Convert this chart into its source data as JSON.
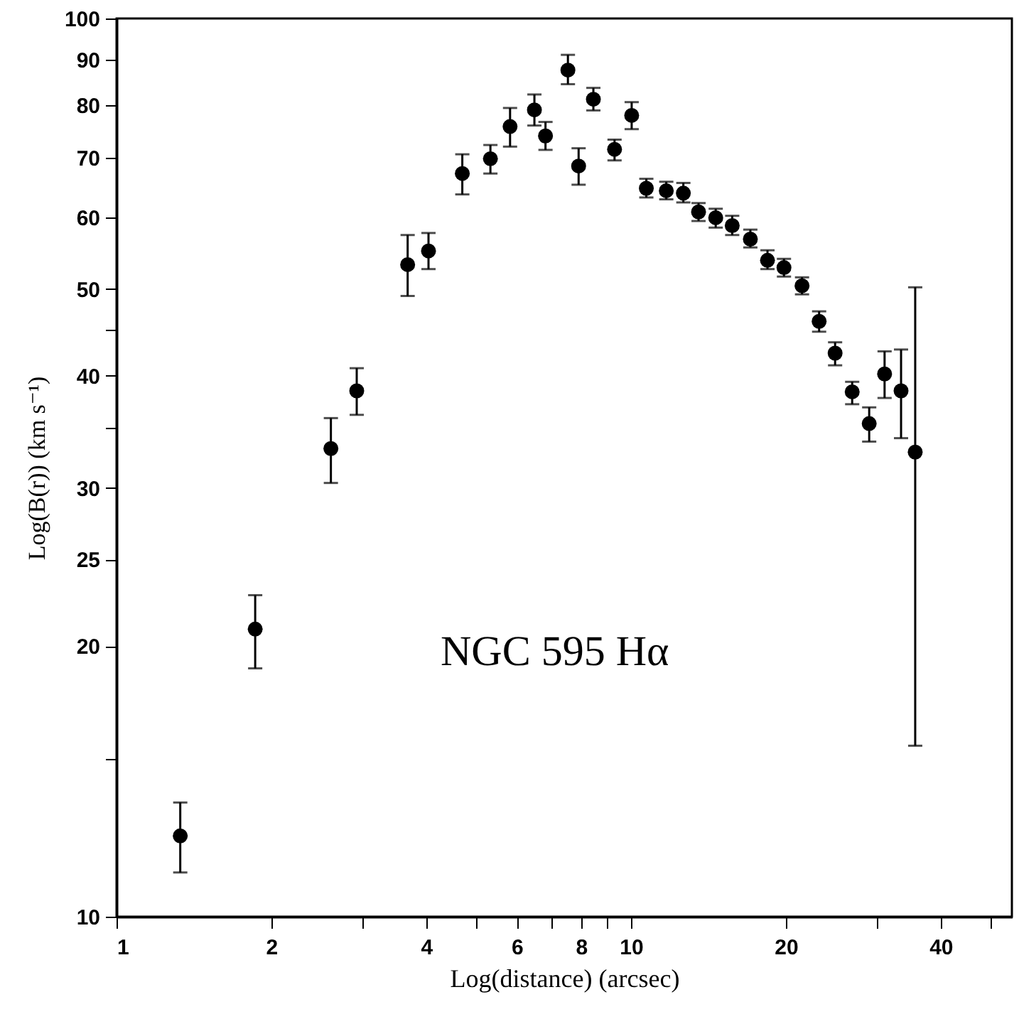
{
  "chart_data": {
    "type": "scatter",
    "xlabel": "Log(distance) (arcsec)",
    "ylabel": "Log(B(r)) (km s⁻¹)",
    "annotations": [
      "NGC 595 Hα"
    ],
    "log": "xy",
    "marker": "circle",
    "xlim": [
      1,
      55
    ],
    "ylim": [
      10,
      100
    ],
    "xticks": [
      1,
      2,
      {
        "value": 3,
        "label": null
      },
      4,
      {
        "value": 5,
        "label": null
      },
      6,
      {
        "value": 7,
        "label": null
      },
      8,
      {
        "value": 9,
        "label": null
      },
      10,
      20,
      {
        "value": 30,
        "label": null
      },
      40,
      {
        "value": 50,
        "label": null
      }
    ],
    "yticks": [
      10,
      {
        "value": 15,
        "label": null
      },
      20,
      25,
      30,
      {
        "value": 35,
        "label": null
      },
      40,
      {
        "value": 45,
        "label": null
      },
      50,
      60,
      70,
      80,
      90,
      100
    ],
    "x": [
      1.33,
      1.86,
      2.61,
      2.93,
      3.68,
      4.04,
      4.7,
      5.33,
      5.82,
      6.49,
      6.82,
      7.54,
      7.91,
      8.45,
      9.29,
      10.03,
      10.71,
      11.71,
      12.64,
      13.53,
      14.61,
      15.73,
      17.06,
      18.42,
      19.83,
      21.5,
      23.21,
      24.93,
      26.91,
      29.04,
      31.11,
      33.49,
      35.68
    ],
    "series": [
      {
        "color": "#000000",
        "values": [
          12.3,
          20.9,
          33.2,
          38.5,
          53.2,
          55.1,
          67.2,
          69.8,
          75.8,
          79.1,
          74.0,
          87.6,
          68.5,
          81.3,
          71.5,
          78.0,
          64.7,
          64.3,
          63.9,
          60.9,
          60.0,
          58.8,
          56.8,
          53.8,
          52.8,
          50.4,
          46.0,
          42.4,
          38.4,
          35.4,
          40.2,
          38.5,
          32.9
        ],
        "errors": [
          [
            11.2,
            13.4
          ],
          [
            18.9,
            22.8
          ],
          [
            30.4,
            35.9
          ],
          [
            36.2,
            40.8
          ],
          [
            49.1,
            57.4
          ],
          [
            52.6,
            57.7
          ],
          [
            63.7,
            70.6
          ],
          [
            67.2,
            72.3
          ],
          [
            72.0,
            79.5
          ],
          [
            76.0,
            82.3
          ],
          [
            71.4,
            76.7
          ],
          [
            84.5,
            91.1
          ],
          [
            65.3,
            71.7
          ],
          [
            79.0,
            83.7
          ],
          [
            69.5,
            73.3
          ],
          [
            75.3,
            80.7
          ],
          [
            63.2,
            66.3
          ],
          [
            62.9,
            65.8
          ],
          [
            62.4,
            65.6
          ],
          [
            59.5,
            62.3
          ],
          [
            58.5,
            61.4
          ],
          [
            57.4,
            60.3
          ],
          [
            55.6,
            58.2
          ],
          [
            52.6,
            55.2
          ],
          [
            51.6,
            54.0
          ],
          [
            49.3,
            51.5
          ],
          [
            44.8,
            47.2
          ],
          [
            41.1,
            43.6
          ],
          [
            37.2,
            39.4
          ],
          [
            33.8,
            36.9
          ],
          [
            37.8,
            42.6
          ],
          [
            34.1,
            42.8
          ],
          [
            15.5,
            50.2
          ]
        ]
      }
    ]
  }
}
